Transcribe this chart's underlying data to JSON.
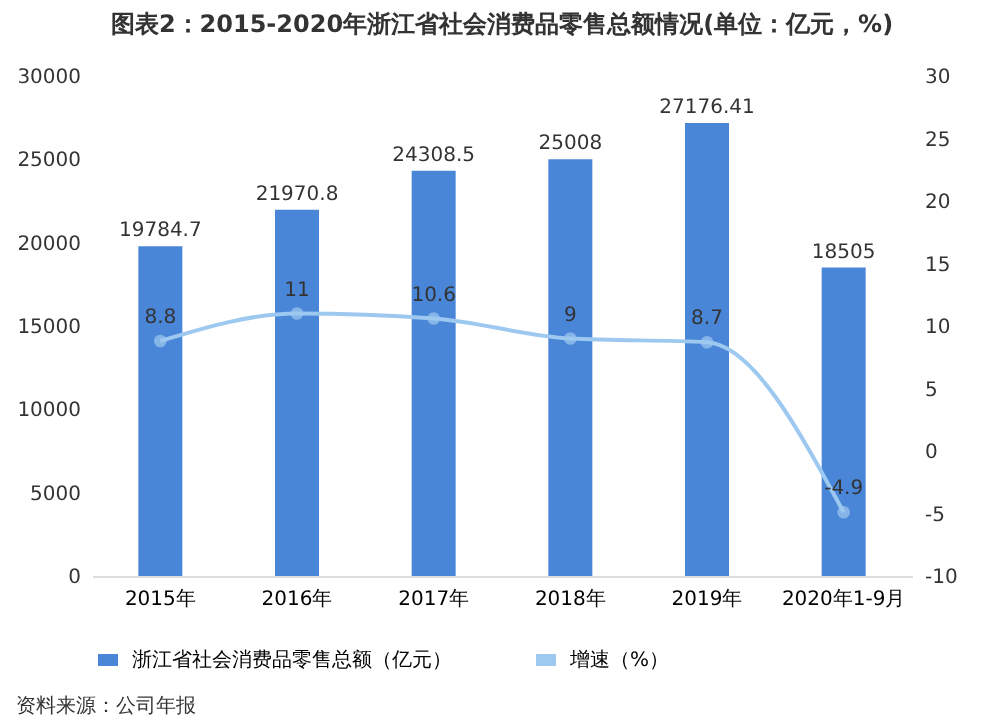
{
  "chart_data": {
    "type": "bar",
    "title": "图表2：2015-2020年浙江省社会消费品零售总额情况(单位：亿元，%)",
    "categories": [
      "2015年",
      "2016年",
      "2017年",
      "2018年",
      "2019年",
      "2020年1-9月"
    ],
    "series": [
      {
        "name": "浙江省社会消费品零售总额（亿元）",
        "color": "#4a86d8",
        "values": [
          19784.7,
          21970.8,
          24308.5,
          25008,
          27176.41,
          18505
        ]
      },
      {
        "name": "增速（%）",
        "type": "line",
        "axis": "y2",
        "color": "#9dc8f0",
        "values": [
          8.8,
          11,
          10.6,
          9,
          8.7,
          -4.9
        ],
        "marker": "circle",
        "line_style": "solid"
      }
    ],
    "ylim": [
      0,
      30000
    ],
    "yticks": [
      0,
      5000,
      10000,
      15000,
      20000,
      25000,
      30000
    ],
    "y2lim": [
      -10,
      30
    ],
    "y2ticks": [
      -10,
      -5,
      0,
      5,
      10,
      15,
      20,
      25,
      30
    ],
    "data_labels": true,
    "legend": "bottom",
    "annotations": [
      "资料来源：公司年报"
    ]
  }
}
